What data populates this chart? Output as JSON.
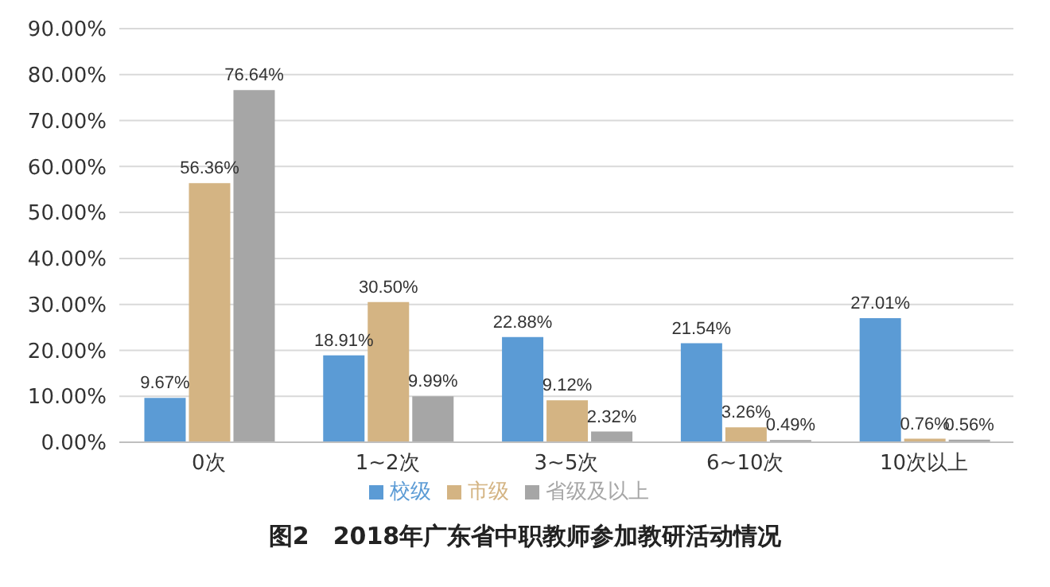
{
  "chart_data": {
    "type": "bar",
    "title": "图2　2018年广东省中职教师参加教研活动情况",
    "categories": [
      "0次",
      "1~2次",
      "3~5次",
      "6~10次",
      "10次以上"
    ],
    "series": [
      {
        "name": "校级",
        "color": "#5b9bd5",
        "values": [
          9.67,
          18.91,
          22.88,
          21.54,
          27.01
        ],
        "value_labels": [
          "9.67%",
          "18.91%",
          "22.88%",
          "21.54%",
          "27.01%"
        ]
      },
      {
        "name": "市级",
        "color": "#d4b483",
        "values": [
          56.36,
          30.5,
          9.12,
          3.26,
          0.76
        ],
        "value_labels": [
          "56.36%",
          "30.50%",
          "9.12%",
          "3.26%",
          "0.76%"
        ]
      },
      {
        "name": "省级及以上",
        "color": "#a6a6a6",
        "values": [
          76.64,
          9.99,
          2.32,
          0.49,
          0.56
        ],
        "value_labels": [
          "76.64%",
          "9.99%",
          "2.32%",
          "0.49%",
          "0.56%"
        ]
      }
    ],
    "ylim": [
      0,
      90
    ],
    "yticks": [
      {
        "value": 0,
        "label": "0.00%"
      },
      {
        "value": 10,
        "label": "10.00%"
      },
      {
        "value": 20,
        "label": "20.00%"
      },
      {
        "value": 30,
        "label": "30.00%"
      },
      {
        "value": 40,
        "label": "40.00%"
      },
      {
        "value": 50,
        "label": "50.00%"
      },
      {
        "value": 60,
        "label": "60.00%"
      },
      {
        "value": 70,
        "label": "70.00%"
      },
      {
        "value": 80,
        "label": "80.00%"
      },
      {
        "value": 90,
        "label": "90.00%"
      }
    ],
    "grid": "y",
    "legend": "bottom"
  }
}
